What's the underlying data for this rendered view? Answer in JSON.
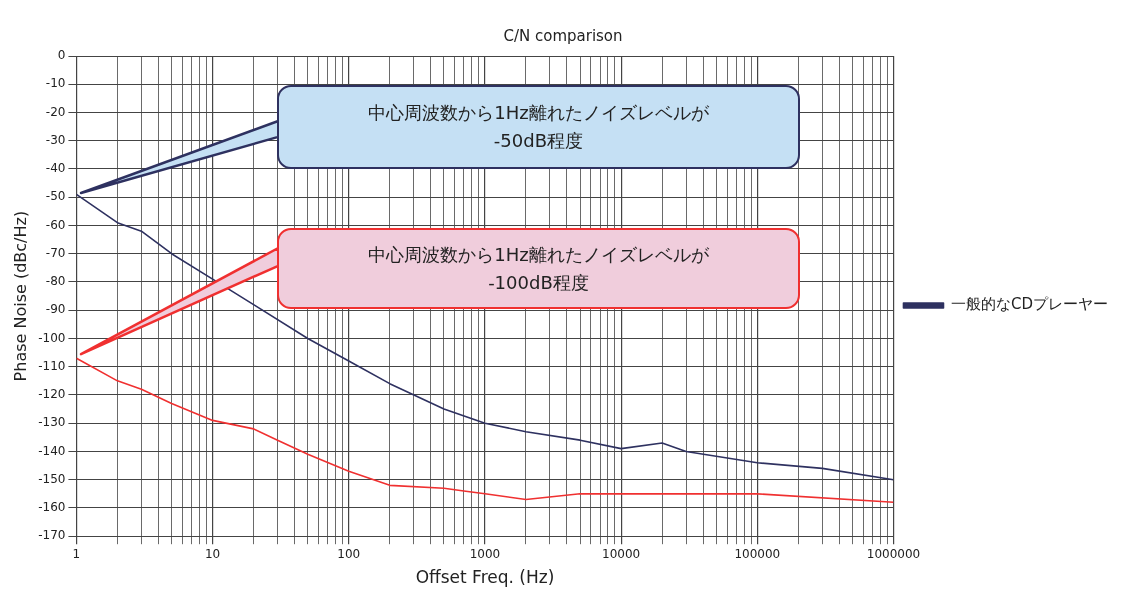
{
  "chart_data": {
    "type": "line",
    "title": "C/N comparison",
    "xlabel": "Offset Freq. (Hz)",
    "ylabel": "Phase Noise (dBc/Hz)",
    "log": "x",
    "xlim": [
      1,
      1000000
    ],
    "xticks": [
      1,
      {
        "value": 2,
        "label": null
      },
      {
        "value": 3,
        "label": null
      },
      {
        "value": 4,
        "label": null
      },
      {
        "value": 5,
        "label": null
      },
      {
        "value": 6,
        "label": null
      },
      {
        "value": 7,
        "label": null
      },
      {
        "value": 8,
        "label": null
      },
      {
        "value": 9,
        "label": null
      },
      10,
      {
        "value": 20,
        "label": null
      },
      {
        "value": 30,
        "label": null
      },
      {
        "value": 40,
        "label": null
      },
      {
        "value": 50,
        "label": null
      },
      {
        "value": 60,
        "label": null
      },
      {
        "value": 70,
        "label": null
      },
      {
        "value": 80,
        "label": null
      },
      {
        "value": 90,
        "label": null
      },
      100,
      {
        "value": 200,
        "label": null
      },
      {
        "value": 300,
        "label": null
      },
      {
        "value": 400,
        "label": null
      },
      {
        "value": 500,
        "label": null
      },
      {
        "value": 600,
        "label": null
      },
      {
        "value": 700,
        "label": null
      },
      {
        "value": 800,
        "label": null
      },
      {
        "value": 900,
        "label": null
      },
      1000,
      {
        "value": 2000,
        "label": null
      },
      {
        "value": 3000,
        "label": null
      },
      {
        "value": 4000,
        "label": null
      },
      {
        "value": 5000,
        "label": null
      },
      {
        "value": 6000,
        "label": null
      },
      {
        "value": 7000,
        "label": null
      },
      {
        "value": 8000,
        "label": null
      },
      {
        "value": 9000,
        "label": null
      },
      10000,
      {
        "value": 20000,
        "label": null
      },
      {
        "value": 30000,
        "label": null
      },
      {
        "value": 40000,
        "label": null
      },
      {
        "value": 50000,
        "label": null
      },
      {
        "value": 60000,
        "label": null
      },
      {
        "value": 70000,
        "label": null
      },
      {
        "value": 80000,
        "label": null
      },
      {
        "value": 90000,
        "label": null
      },
      100000,
      {
        "value": 200000,
        "label": null
      },
      {
        "value": 300000,
        "label": null
      },
      {
        "value": 400000,
        "label": null
      },
      {
        "value": 500000,
        "label": null
      },
      {
        "value": 600000,
        "label": null
      },
      {
        "value": 700000,
        "label": null
      },
      {
        "value": 800000,
        "label": null
      },
      {
        "value": 900000,
        "label": null
      },
      1000000
    ],
    "ylim": [
      -170,
      0
    ],
    "yticks": [
      0,
      -10,
      -20,
      -30,
      -40,
      -50,
      -60,
      -70,
      -80,
      -90,
      -100,
      -110,
      -120,
      -130,
      -140,
      -150,
      -160,
      -170
    ],
    "grid": true,
    "legend": "right",
    "marker": "none",
    "line_style": "solid",
    "series": [
      {
        "name": "一般的なCDプレーヤー",
        "color": "#2e3160",
        "x": [
          1,
          2,
          3,
          5,
          10,
          20,
          50,
          100,
          200,
          500,
          1000,
          2000,
          5000,
          10000,
          20000,
          30000,
          100000,
          300000,
          1000000
        ],
        "values": [
          -49,
          -59,
          -62,
          -70,
          -79,
          -88,
          -100,
          -108,
          -116,
          -125,
          -130,
          -133,
          -136,
          -139,
          -137,
          -140,
          -144,
          -146,
          -150
        ]
      },
      {
        "color": "#f03030",
        "x": [
          1,
          2,
          3,
          5,
          10,
          20,
          30,
          50,
          100,
          200,
          500,
          700,
          1000,
          2000,
          5000,
          100000,
          1000000
        ],
        "values": [
          -107,
          -115,
          -118,
          -123,
          -129,
          -132,
          -136,
          -141,
          -147,
          -152,
          -153,
          -154,
          -155,
          -157,
          -155,
          -155,
          -158
        ]
      }
    ],
    "annotations": [
      "中心周波数から1Hz離れたノイズレベルが\n-50dB程度",
      "中心周波数から1Hz離れたノイズレベルが\n-100dB程度"
    ]
  }
}
